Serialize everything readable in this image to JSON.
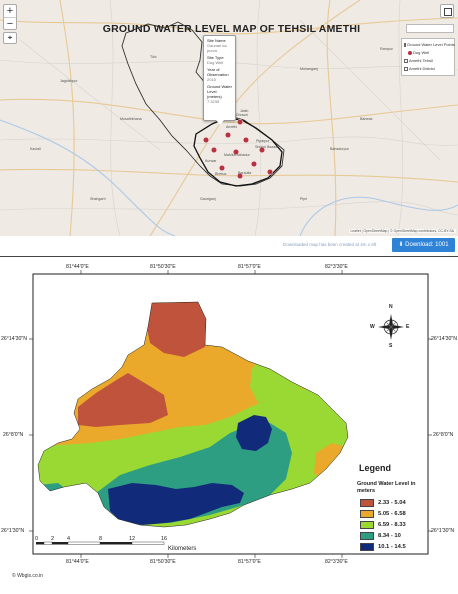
{
  "web_map": {
    "zoom_in": "+",
    "zoom_out": "−",
    "locate_icon": "location-pin-icon",
    "fullscreen_icon": "fullscreen-icon",
    "layers": {
      "title": "Ground Water Level Points",
      "items": [
        "Dug Well"
      ],
      "extra": [
        "Amethi Tehsil",
        "Amethi District"
      ]
    },
    "popup": {
      "fields": [
        {
          "label": "Site Name",
          "value": "Gaunari ka purva"
        },
        {
          "label": "Site Type",
          "value": "Dug Well"
        },
        {
          "label": "Year of Observation",
          "value": "2015"
        },
        {
          "label": "Ground Water Level (meters)",
          "value": "7.3235"
        }
      ]
    },
    "place_labels": [
      "Amethi",
      "Jaish",
      "Tiloi",
      "Mohanganj",
      "Rampur",
      "Jagdishpur",
      "Kaviali",
      "Musafirkhana",
      "Bahadurpur",
      "Gauriganj",
      "Shukul Bazaar",
      "Bhetua",
      "Shahgarh",
      "Baheda",
      "Pipri",
      "Kurwar",
      "Mahika bahadur",
      "Piparpur",
      "Baraulia",
      "Dhrauri"
    ],
    "attribution": "Leaflet | OpenStreetMap | © OpenStreetMap contributors, CC-BY-SA",
    "download_text": "Downloaded map has been created at 4m x 6ft",
    "download_button": "⬇ Download: 1001",
    "download_icon": "download-icon"
  },
  "print_map": {
    "title": "GROUND WATER LEVEL MAP OF TEHSIL AMETHI",
    "coords_top": [
      "81°44'0\"E",
      "81°50'30\"E",
      "81°57'0\"E",
      "82°3'30\"E"
    ],
    "coords_bottom": [
      "81°44'0\"E",
      "81°50'30\"E",
      "81°57'0\"E",
      "82°3'30\"E"
    ],
    "coords_left": [
      "26°14'30\"N",
      "26°8'0\"N",
      "26°1'30\"N"
    ],
    "coords_right": [
      "26°14'30\"N",
      "26°8'0\"N",
      "26°1'30\"N"
    ],
    "compass": {
      "n": "N",
      "s": "S",
      "e": "E",
      "w": "W"
    },
    "compass_icon": "compass-rose-icon",
    "legend": {
      "title": "Legend",
      "subtitle": "Ground Water Level in meters",
      "classes": [
        {
          "label": "2.33 - 5.04",
          "color": "#c0533b"
        },
        {
          "label": "5.05 - 6.58",
          "color": "#eaa92a"
        },
        {
          "label": "6.59 - 8.33",
          "color": "#9ad933"
        },
        {
          "label": "8.34 - 10",
          "color": "#2e9e83"
        },
        {
          "label": "10.1 - 14.5",
          "color": "#122a7a"
        }
      ]
    },
    "scale": {
      "ticks": [
        "0",
        "2",
        "4",
        "8",
        "12",
        "16"
      ],
      "unit": "Kilometers"
    },
    "credit": "© Wbgis.co.in",
    "credit_icon": "copyright-icon"
  }
}
